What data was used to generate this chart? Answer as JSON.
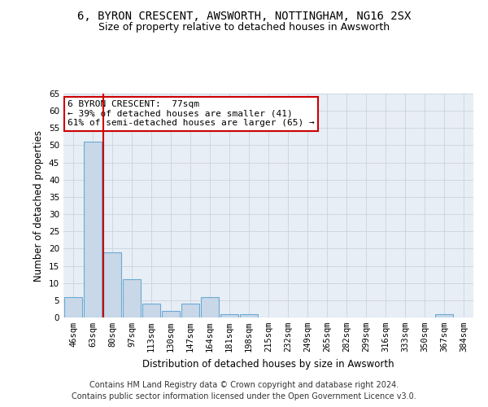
{
  "title": "6, BYRON CRESCENT, AWSWORTH, NOTTINGHAM, NG16 2SX",
  "subtitle": "Size of property relative to detached houses in Awsworth",
  "xlabel": "Distribution of detached houses by size in Awsworth",
  "ylabel": "Number of detached properties",
  "bar_values": [
    6,
    51,
    19,
    11,
    4,
    2,
    4,
    6,
    1,
    1,
    0,
    0,
    0,
    0,
    0,
    0,
    0,
    0,
    0,
    1,
    0
  ],
  "bar_labels": [
    "46sqm",
    "63sqm",
    "80sqm",
    "97sqm",
    "113sqm",
    "130sqm",
    "147sqm",
    "164sqm",
    "181sqm",
    "198sqm",
    "215sqm",
    "232sqm",
    "249sqm",
    "265sqm",
    "282sqm",
    "299sqm",
    "316sqm",
    "333sqm",
    "350sqm",
    "367sqm",
    "384sqm"
  ],
  "bar_color": "#c8d8e8",
  "bar_edge_color": "#6aaad4",
  "highlight_bar_index": 2,
  "highlight_bar_edge_color": "#cc0000",
  "ylim": [
    0,
    65
  ],
  "yticks": [
    0,
    5,
    10,
    15,
    20,
    25,
    30,
    35,
    40,
    45,
    50,
    55,
    60,
    65
  ],
  "annotation_line1": "6 BYRON CRESCENT:  77sqm",
  "annotation_line2": "← 39% of detached houses are smaller (41)",
  "annotation_line3": "61% of semi-detached houses are larger (65) →",
  "annotation_box_color": "#ffffff",
  "annotation_box_edge_color": "#cc0000",
  "footer_line1": "Contains HM Land Registry data © Crown copyright and database right 2024.",
  "footer_line2": "Contains public sector information licensed under the Open Government Licence v3.0.",
  "background_color": "#ffffff",
  "plot_bg_color": "#e8eef5",
  "grid_color": "#c8d4e0",
  "title_fontsize": 10,
  "subtitle_fontsize": 9,
  "axis_label_fontsize": 8.5,
  "tick_fontsize": 7.5,
  "annotation_fontsize": 8,
  "footer_fontsize": 7
}
